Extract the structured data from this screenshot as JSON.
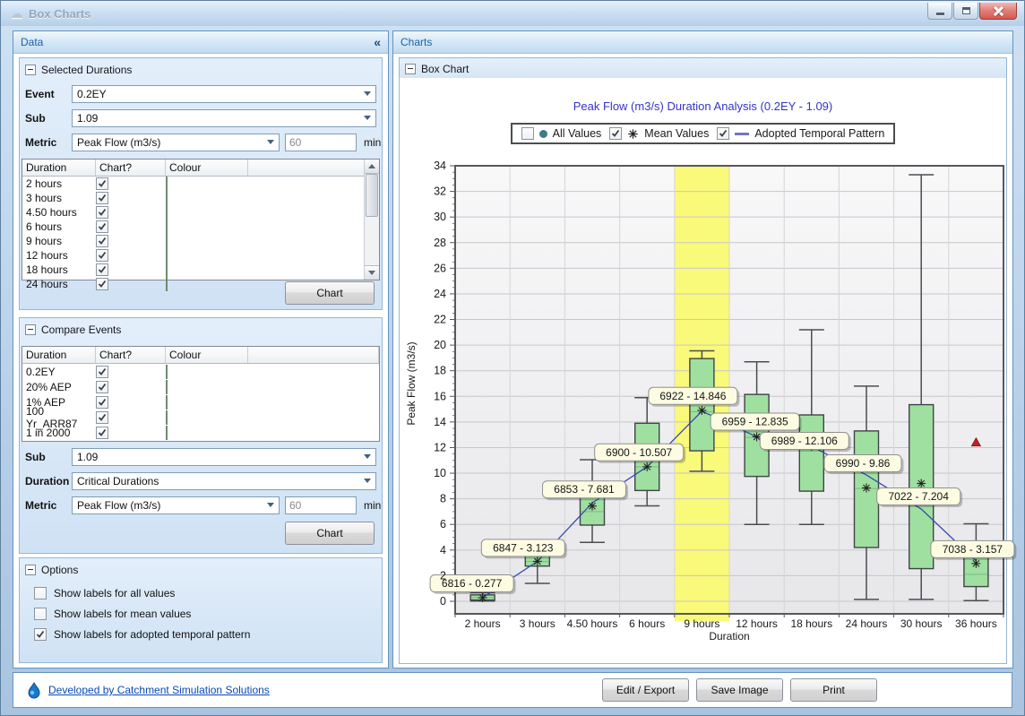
{
  "window": {
    "title": "Box Charts"
  },
  "icons": {
    "app": "☁",
    "collapse_left": "«"
  },
  "left_panel": {
    "header": "Data",
    "selected_durations": {
      "title": "Selected Durations",
      "event_label": "Event",
      "event_value": "0.2EY",
      "sub_label": "Sub",
      "sub_value": "1.09",
      "metric_label": "Metric",
      "metric_value": "Peak Flow (m3/s)",
      "metric_interval_value": "60",
      "metric_interval_unit": "min",
      "table": {
        "columns": [
          "Duration",
          "Chart?",
          "Colour"
        ],
        "swatch_color": "#9de09d",
        "rows": [
          {
            "label": "2 hours",
            "checked": true
          },
          {
            "label": "3 hours",
            "checked": true
          },
          {
            "label": "4.50 hours",
            "checked": true
          },
          {
            "label": "6 hours",
            "checked": true
          },
          {
            "label": "9 hours",
            "checked": true
          },
          {
            "label": "12 hours",
            "checked": true
          },
          {
            "label": "18 hours",
            "checked": true
          },
          {
            "label": "24 hours",
            "checked": true
          }
        ]
      },
      "chart_button": "Chart"
    },
    "compare_events": {
      "title": "Compare Events",
      "table": {
        "columns": [
          "Duration",
          "Chart?",
          "Colour"
        ],
        "swatch_color": "#9de09d",
        "rows": [
          {
            "label": "0.2EY",
            "checked": true
          },
          {
            "label": "20% AEP",
            "checked": true
          },
          {
            "label": "1% AEP",
            "checked": true
          },
          {
            "label": "100 Yr_ARR87",
            "checked": true
          },
          {
            "label": "1 in 2000",
            "checked": true
          }
        ]
      },
      "sub_label": "Sub",
      "sub_value": "1.09",
      "duration_label": "Duration",
      "duration_value": "Critical Durations",
      "metric_label": "Metric",
      "metric_value": "Peak Flow (m3/s)",
      "metric_interval_value": "60",
      "metric_interval_unit": "min",
      "chart_button": "Chart"
    },
    "options": {
      "title": "Options",
      "items": [
        {
          "label": "Show labels for all values",
          "checked": false
        },
        {
          "label": "Show labels for mean values",
          "checked": false
        },
        {
          "label": "Show labels for adopted temporal pattern",
          "checked": true
        }
      ]
    }
  },
  "right_panel": {
    "header": "Charts",
    "group_title": "Box Chart"
  },
  "chart_data": {
    "type": "box",
    "title": "Peak Flow (m3/s) Duration Analysis (0.2EY - 1.09)",
    "xlabel": "Duration",
    "ylabel": "Peak Flow (m3/s)",
    "ylim": [
      0,
      34
    ],
    "y_tick_step": 2,
    "grid": true,
    "legend_position": "top-center",
    "legend": [
      {
        "label": "All Values",
        "checked": false,
        "marker": "circle",
        "marker_color": "#41798b"
      },
      {
        "label": "Mean Values",
        "checked": true,
        "marker": "asterisk",
        "marker_color": "#222222"
      },
      {
        "label": "Adopted Temporal Pattern",
        "checked": true,
        "marker": "line",
        "marker_color": "#7373cf"
      }
    ],
    "highlight_category": "9 hours",
    "highlight_color": "#f9f97a",
    "box_fill": "#9fe0a0",
    "line_color": "#3a49b0",
    "categories": [
      "2 hours",
      "3 hours",
      "4.50 hours",
      "6 hours",
      "9 hours",
      "12 hours",
      "18 hours",
      "24 hours",
      "30 hours",
      "36 hours"
    ],
    "boxes": [
      {
        "category": "2 hours",
        "whisker_low": 0.02,
        "q1": 0.1,
        "median": 0.3,
        "q3": 0.5,
        "whisker_high": 0.68,
        "mean": 0.28,
        "adopted": 0.277,
        "label": "6816 -  0.277"
      },
      {
        "category": "3 hours",
        "whisker_low": 1.4,
        "q1": 2.75,
        "median": 3.1,
        "q3": 3.55,
        "whisker_high": 3.75,
        "mean": 3.12,
        "adopted": 3.123,
        "label": "6847 -  3.123"
      },
      {
        "category": "4.50 hours",
        "whisker_low": 4.6,
        "q1": 5.95,
        "median": 7.0,
        "q3": 8.25,
        "whisker_high": 11.05,
        "mean": 7.43,
        "adopted": 7.681,
        "label": "6853 -  7.681"
      },
      {
        "category": "6 hours",
        "whisker_low": 7.45,
        "q1": 8.65,
        "median": 10.5,
        "q3": 13.9,
        "whisker_high": 15.9,
        "mean": 10.5,
        "adopted": 10.507,
        "label": "6900 -  10.507"
      },
      {
        "category": "9 hours",
        "whisker_low": 10.15,
        "q1": 11.75,
        "median": 14.8,
        "q3": 18.95,
        "whisker_high": 19.55,
        "mean": 14.9,
        "adopted": 14.846,
        "label": "6922 -  14.846"
      },
      {
        "category": "12 hours",
        "whisker_low": 6.0,
        "q1": 9.75,
        "median": 12.8,
        "q3": 16.15,
        "whisker_high": 18.7,
        "mean": 12.84,
        "adopted": 12.835,
        "label": "6959 -  12.835"
      },
      {
        "category": "18 hours",
        "whisker_low": 6.0,
        "q1": 8.6,
        "median": 12.1,
        "q3": 14.55,
        "whisker_high": 21.2,
        "mean": 12.1,
        "adopted": 12.106,
        "label": "6989 -  12.106"
      },
      {
        "category": "24 hours",
        "whisker_low": 0.15,
        "q1": 4.2,
        "median": 8.8,
        "q3": 13.3,
        "whisker_high": 16.8,
        "mean": 8.85,
        "adopted": 9.86,
        "label": "6990 -  9.86"
      },
      {
        "category": "30 hours",
        "whisker_low": 0.15,
        "q1": 2.55,
        "median": 7.5,
        "q3": 15.35,
        "whisker_high": 33.3,
        "mean": 9.2,
        "adopted": 7.204,
        "label": "7022 -  7.204"
      },
      {
        "category": "36 hours",
        "whisker_low": 0.05,
        "q1": 1.15,
        "median": 2.1,
        "q3": 3.6,
        "whisker_high": 6.05,
        "mean": 2.95,
        "adopted": 3.157,
        "label": "7038 -  3.157"
      }
    ],
    "extra_marker": {
      "category": "36 hours",
      "value": 12.4,
      "shape": "triangle-up",
      "color": "#c42020"
    }
  },
  "footer": {
    "credit": "Developed by Catchment Simulation Solutions",
    "buttons": [
      {
        "label": "Edit / Export"
      },
      {
        "label": "Save Image"
      },
      {
        "label": "Print"
      }
    ]
  }
}
